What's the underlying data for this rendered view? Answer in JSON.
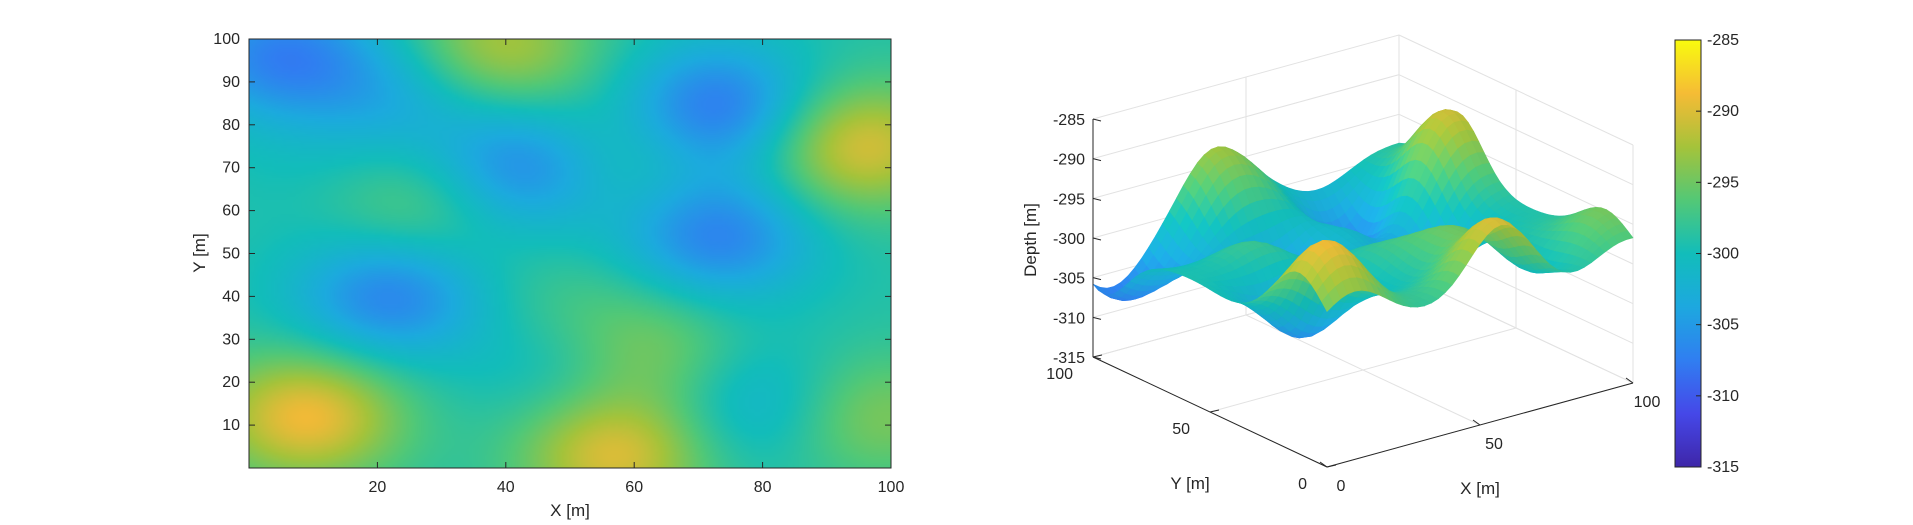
{
  "chart_data": [
    {
      "type": "heatmap",
      "title": "",
      "xlabel": "X [m]",
      "ylabel": "Y [m]",
      "xlim": [
        0,
        100
      ],
      "ylim": [
        0,
        100
      ],
      "x_ticks": [
        20,
        40,
        60,
        80,
        100
      ],
      "y_ticks": [
        10,
        20,
        30,
        40,
        50,
        60,
        70,
        80,
        90,
        100
      ],
      "colormap": "parula",
      "grid": false,
      "z_range": [
        -315,
        -285
      ],
      "features": [
        {
          "x": 5,
          "y": 96,
          "z": -307
        },
        {
          "x": 23,
          "y": 87,
          "z": -303
        },
        {
          "x": 39,
          "y": 98,
          "z": -292
        },
        {
          "x": 73,
          "y": 84,
          "z": -308
        },
        {
          "x": 95,
          "y": 75,
          "z": -290
        },
        {
          "x": 43,
          "y": 70,
          "z": -307
        },
        {
          "x": 57,
          "y": 73,
          "z": -296
        },
        {
          "x": 12,
          "y": 68,
          "z": -300
        },
        {
          "x": 26,
          "y": 61,
          "z": -295
        },
        {
          "x": 73,
          "y": 54,
          "z": -307
        },
        {
          "x": 22,
          "y": 40,
          "z": -307
        },
        {
          "x": 49,
          "y": 37,
          "z": -297
        },
        {
          "x": 9,
          "y": 12,
          "z": -289
        },
        {
          "x": 50,
          "y": 25,
          "z": -302
        },
        {
          "x": 62,
          "y": 27,
          "z": -294
        },
        {
          "x": 79,
          "y": 15,
          "z": -303
        },
        {
          "x": 57,
          "y": 3,
          "z": -290
        },
        {
          "x": 97,
          "y": 12,
          "z": -294
        },
        {
          "x": 37,
          "y": 5,
          "z": -299
        }
      ]
    },
    {
      "type": "surface3d",
      "title": "",
      "xlabel": "X [m]",
      "ylabel": "Y [m]",
      "zlabel": "Depth [m]",
      "xlim": [
        0,
        100
      ],
      "ylim": [
        0,
        100
      ],
      "zlim": [
        -315,
        -285
      ],
      "x_ticks": [
        0,
        50,
        100
      ],
      "y_ticks": [
        0,
        50,
        100
      ],
      "z_ticks": [
        -315,
        -310,
        -305,
        -300,
        -295,
        -290,
        -285
      ],
      "grid": true,
      "colormap": "parula",
      "colorbar": {
        "range": [
          -315,
          -285
        ],
        "ticks": [
          -315,
          -310,
          -305,
          -300,
          -295,
          -290,
          -285
        ],
        "placement": "right"
      }
    }
  ]
}
